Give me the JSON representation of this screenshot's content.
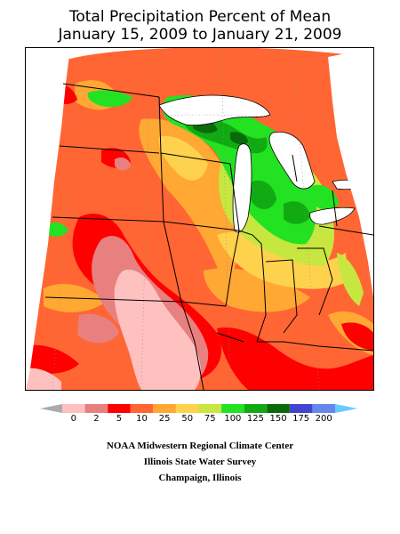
{
  "map": {
    "title_line1": "Total Precipitation Percent of Mean",
    "title_line2": "January 15, 2009 to January 21, 2009",
    "type": "precipitation percent of mean",
    "region": "Midwestern United States"
  },
  "legend": {
    "breaks": [
      "0",
      "2",
      "5",
      "10",
      "25",
      "50",
      "75",
      "100",
      "125",
      "150",
      "175",
      "200"
    ],
    "colors": [
      "#ffc0c0",
      "#e88080",
      "#ff0000",
      "#ff6633",
      "#ffa833",
      "#ffd24d",
      "#c8e640",
      "#22e222",
      "#12aa12",
      "#0a6a0a",
      "#4444cc",
      "#6688ee"
    ],
    "under_color": "#aaaaaa",
    "over_color": "#66ccff"
  },
  "credits": {
    "line1": "NOAA Midwestern Regional Climate Center",
    "line2": "Illinois State Water Survey",
    "line3": "Champaign, Illinois"
  },
  "palette": {
    "lake": "#ffffff",
    "boundary": "#000000",
    "graticule": "#888888"
  }
}
